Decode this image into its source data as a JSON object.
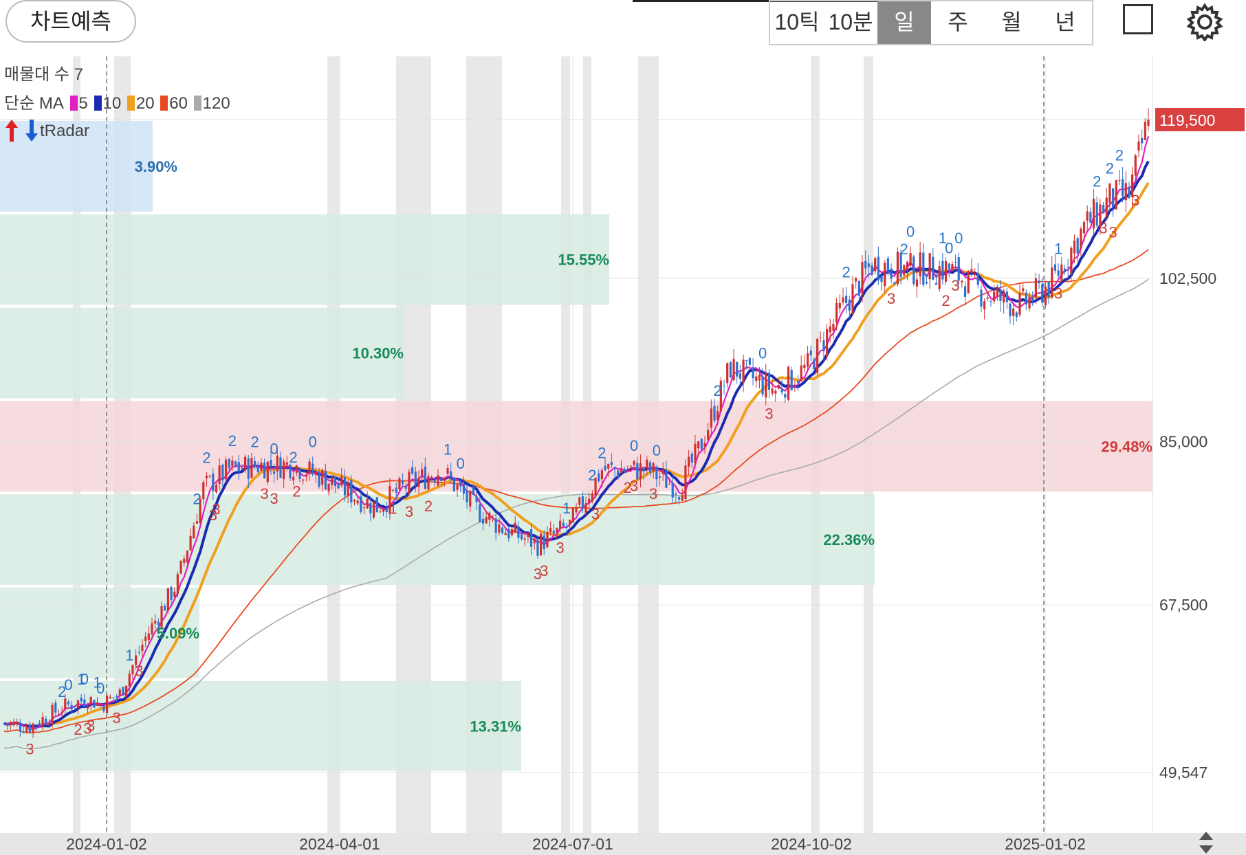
{
  "toolbar": {
    "predict_label": "차트예측",
    "periods": [
      "10틱",
      "10분",
      "일",
      "주",
      "월",
      "년"
    ],
    "active_period": "일"
  },
  "legend": {
    "volume_profile": "매물대 수 7",
    "ma_label": "단순 MA",
    "ma_periods": [
      "5",
      "10",
      "20",
      "60",
      "120"
    ],
    "ma_colors": [
      "#e020c0",
      "#1a2bb0",
      "#f0a020",
      "#e84a20",
      "#aaaaaa"
    ],
    "tradar_label": "tRadar"
  },
  "chart_data": {
    "type": "candlestick",
    "y_axis_ticks": [
      "119,500",
      "102,500",
      "85,000",
      "67,500",
      "49,547"
    ],
    "x_axis_ticks": [
      "2024-01-02",
      "2024-04-01",
      "2024-07-01",
      "2024-10-02",
      "2025-01-02"
    ],
    "last_price": "119,500",
    "price_range": [
      49547,
      119500
    ],
    "volume_profile_zones": [
      {
        "low": 109500,
        "high": 119500,
        "percent": "3.90%",
        "color": "#cfe3f7",
        "text_color": "#2a6fb0"
      },
      {
        "low": 99500,
        "high": 109500,
        "percent": "15.55%",
        "color": "#d6ebe2",
        "text_color": "#1a8a5a"
      },
      {
        "low": 89500,
        "high": 99500,
        "percent": "10.30%",
        "color": "#d6ebe2",
        "text_color": "#1a8a5a"
      },
      {
        "low": 79500,
        "high": 89500,
        "percent": "29.48%",
        "color": "#f5d6d8",
        "text_color": "#d03a3a"
      },
      {
        "low": 69500,
        "high": 79500,
        "percent": "22.36%",
        "color": "#d6ebe2",
        "text_color": "#1a8a5a"
      },
      {
        "low": 59500,
        "high": 69500,
        "percent": "5.09%",
        "color": "#d6ebe2",
        "text_color": "#1a8a5a"
      },
      {
        "low": 49547,
        "high": 59500,
        "percent": "13.31%",
        "color": "#d6ebe2",
        "text_color": "#1a8a5a"
      }
    ],
    "price_path": [
      [
        0,
        54800
      ],
      [
        8,
        54500
      ],
      [
        18,
        56500
      ],
      [
        26,
        57500
      ],
      [
        30,
        56800
      ],
      [
        36,
        58000
      ],
      [
        44,
        64000
      ],
      [
        54,
        70000
      ],
      [
        62,
        80000
      ],
      [
        70,
        82000
      ],
      [
        80,
        82500
      ],
      [
        90,
        82500
      ],
      [
        100,
        81000
      ],
      [
        110,
        79000
      ],
      [
        116,
        78000
      ],
      [
        126,
        80500
      ],
      [
        136,
        82000
      ],
      [
        146,
        78000
      ],
      [
        156,
        75500
      ],
      [
        166,
        74000
      ],
      [
        176,
        76000
      ],
      [
        186,
        82000
      ],
      [
        200,
        82000
      ],
      [
        210,
        80000
      ],
      [
        216,
        84000
      ],
      [
        226,
        93000
      ],
      [
        240,
        90500
      ],
      [
        250,
        93000
      ],
      [
        262,
        100000
      ],
      [
        270,
        104000
      ],
      [
        280,
        103500
      ],
      [
        294,
        103500
      ],
      [
        304,
        101000
      ],
      [
        316,
        99500
      ],
      [
        326,
        102000
      ],
      [
        336,
        108000
      ],
      [
        344,
        111000
      ],
      [
        350,
        111500
      ],
      [
        356,
        119500
      ]
    ],
    "tradar_marks": [
      {
        "i": 18,
        "label": "2",
        "dir": "up"
      },
      {
        "i": 20,
        "label": "0",
        "dir": "up"
      },
      {
        "i": 24,
        "label": "1",
        "dir": "up"
      },
      {
        "i": 25,
        "label": "0",
        "dir": "up"
      },
      {
        "i": 29,
        "label": "1",
        "dir": "up"
      },
      {
        "i": 30,
        "label": "0",
        "dir": "up"
      },
      {
        "i": 39,
        "label": "1",
        "dir": "up"
      },
      {
        "i": 60,
        "label": "2",
        "dir": "up"
      },
      {
        "i": 63,
        "label": "2",
        "dir": "up"
      },
      {
        "i": 71,
        "label": "2",
        "dir": "up"
      },
      {
        "i": 78,
        "label": "2",
        "dir": "up"
      },
      {
        "i": 84,
        "label": "0",
        "dir": "up"
      },
      {
        "i": 90,
        "label": "2",
        "dir": "up"
      },
      {
        "i": 96,
        "label": "0",
        "dir": "up"
      },
      {
        "i": 138,
        "label": "1",
        "dir": "up"
      },
      {
        "i": 142,
        "label": "0",
        "dir": "up"
      },
      {
        "i": 175,
        "label": "1",
        "dir": "up"
      },
      {
        "i": 183,
        "label": "2",
        "dir": "up"
      },
      {
        "i": 186,
        "label": "2",
        "dir": "up"
      },
      {
        "i": 196,
        "label": "0",
        "dir": "up"
      },
      {
        "i": 203,
        "label": "0",
        "dir": "up"
      },
      {
        "i": 222,
        "label": "2",
        "dir": "up"
      },
      {
        "i": 236,
        "label": "0",
        "dir": "up"
      },
      {
        "i": 262,
        "label": "2",
        "dir": "up"
      },
      {
        "i": 280,
        "label": "2",
        "dir": "up"
      },
      {
        "i": 282,
        "label": "0",
        "dir": "up"
      },
      {
        "i": 292,
        "label": "1",
        "dir": "up"
      },
      {
        "i": 294,
        "label": "0",
        "dir": "up"
      },
      {
        "i": 297,
        "label": "0",
        "dir": "up"
      },
      {
        "i": 328,
        "label": "1",
        "dir": "up"
      },
      {
        "i": 340,
        "label": "2",
        "dir": "up"
      },
      {
        "i": 344,
        "label": "2",
        "dir": "up"
      },
      {
        "i": 347,
        "label": "2",
        "dir": "up"
      },
      {
        "i": 8,
        "label": "3",
        "dir": "down"
      },
      {
        "i": 23,
        "label": "2",
        "dir": "down"
      },
      {
        "i": 26,
        "label": "3",
        "dir": "down"
      },
      {
        "i": 27,
        "label": "3",
        "dir": "down"
      },
      {
        "i": 35,
        "label": "3",
        "dir": "down"
      },
      {
        "i": 42,
        "label": "3",
        "dir": "down"
      },
      {
        "i": 65,
        "label": "3",
        "dir": "down"
      },
      {
        "i": 66,
        "label": "3",
        "dir": "down"
      },
      {
        "i": 81,
        "label": "3",
        "dir": "down"
      },
      {
        "i": 84,
        "label": "3",
        "dir": "down"
      },
      {
        "i": 91,
        "label": "2",
        "dir": "down"
      },
      {
        "i": 121,
        "label": "1",
        "dir": "down"
      },
      {
        "i": 126,
        "label": "3",
        "dir": "down"
      },
      {
        "i": 132,
        "label": "2",
        "dir": "down"
      },
      {
        "i": 166,
        "label": "3",
        "dir": "down"
      },
      {
        "i": 168,
        "label": "3",
        "dir": "down"
      },
      {
        "i": 173,
        "label": "3",
        "dir": "down"
      },
      {
        "i": 184,
        "label": "3",
        "dir": "down"
      },
      {
        "i": 194,
        "label": "2",
        "dir": "down"
      },
      {
        "i": 196,
        "label": "3",
        "dir": "down"
      },
      {
        "i": 202,
        "label": "3",
        "dir": "down"
      },
      {
        "i": 238,
        "label": "3",
        "dir": "down"
      },
      {
        "i": 276,
        "label": "3",
        "dir": "down"
      },
      {
        "i": 293,
        "label": "2",
        "dir": "down"
      },
      {
        "i": 296,
        "label": "3",
        "dir": "down"
      },
      {
        "i": 328,
        "label": "3",
        "dir": "down"
      },
      {
        "i": 342,
        "label": "3",
        "dir": "down"
      },
      {
        "i": 345,
        "label": "3",
        "dir": "down"
      },
      {
        "i": 352,
        "label": "3",
        "dir": "down"
      }
    ],
    "colors": {
      "up": "#d03030",
      "down": "#2f6fd0",
      "up_mark": "#2a74c8",
      "down_mark": "#c83a3a"
    }
  }
}
